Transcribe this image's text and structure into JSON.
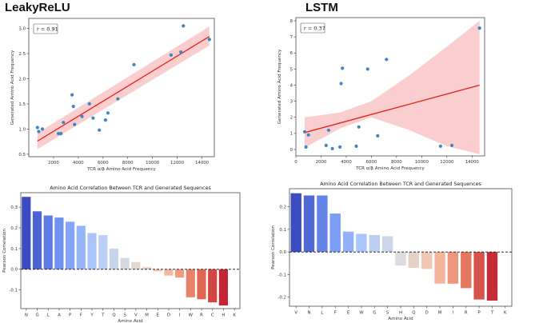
{
  "chart_data": [
    {
      "type": "scatter",
      "panel_title": "LeakyReLU",
      "annotation": "r = 0.91",
      "xlabel": "TCR α/β Amino Acid Frequency",
      "ylabel": "Generated Amino Acid Frequency",
      "xlim": [
        0,
        15000
      ],
      "ylim": [
        0.45,
        3.2
      ],
      "xticks": [
        2000,
        4000,
        6000,
        8000,
        10000,
        12000,
        14000
      ],
      "yticks": [
        0.5,
        1.0,
        1.5,
        2.0,
        2.5,
        3.0
      ],
      "points": [
        {
          "x": 700,
          "y": 1.03
        },
        {
          "x": 800,
          "y": 0.95
        },
        {
          "x": 1100,
          "y": 1.0
        },
        {
          "x": 2400,
          "y": 0.91
        },
        {
          "x": 2600,
          "y": 0.91
        },
        {
          "x": 2800,
          "y": 1.13
        },
        {
          "x": 3500,
          "y": 1.68
        },
        {
          "x": 3600,
          "y": 1.45
        },
        {
          "x": 3700,
          "y": 1.09
        },
        {
          "x": 4300,
          "y": 1.25
        },
        {
          "x": 4900,
          "y": 1.5
        },
        {
          "x": 5200,
          "y": 1.22
        },
        {
          "x": 5700,
          "y": 0.98
        },
        {
          "x": 6200,
          "y": 1.18
        },
        {
          "x": 6400,
          "y": 1.32
        },
        {
          "x": 7200,
          "y": 1.6
        },
        {
          "x": 8500,
          "y": 2.28
        },
        {
          "x": 11500,
          "y": 2.47
        },
        {
          "x": 12300,
          "y": 2.53
        },
        {
          "x": 12500,
          "y": 3.05
        },
        {
          "x": 14600,
          "y": 2.78
        }
      ],
      "regression": {
        "x": [
          700,
          14600
        ],
        "y": [
          0.76,
          2.84
        ]
      },
      "ci_band": {
        "x": [
          700,
          14600
        ],
        "lower": [
          0.6,
          2.66
        ],
        "upper": [
          0.92,
          3.04
        ]
      }
    },
    {
      "type": "scatter",
      "panel_title": "LSTM",
      "annotation": "r = 0.37",
      "xlabel": "TCR α/β Amino Acid Frequency",
      "ylabel": "Generated Amino Acid Frequency",
      "xlim": [
        0,
        15000
      ],
      "ylim": [
        -0.4,
        8.2
      ],
      "xticks": [
        0,
        2000,
        4000,
        6000,
        8000,
        10000,
        12000,
        14000
      ],
      "yticks": [
        0,
        1,
        2,
        3,
        4,
        5,
        6,
        7,
        8
      ],
      "points": [
        {
          "x": 700,
          "y": 1.1
        },
        {
          "x": 800,
          "y": 0.15
        },
        {
          "x": 1000,
          "y": 0.9
        },
        {
          "x": 2400,
          "y": 0.25
        },
        {
          "x": 2600,
          "y": 1.2
        },
        {
          "x": 2900,
          "y": 0.05
        },
        {
          "x": 3500,
          "y": 0.15
        },
        {
          "x": 3600,
          "y": 4.1
        },
        {
          "x": 3700,
          "y": 5.05
        },
        {
          "x": 4800,
          "y": 0.2
        },
        {
          "x": 5000,
          "y": 1.4
        },
        {
          "x": 5700,
          "y": 5.0
        },
        {
          "x": 6500,
          "y": 0.85
        },
        {
          "x": 7200,
          "y": 5.6
        },
        {
          "x": 11500,
          "y": 0.2
        },
        {
          "x": 12400,
          "y": 0.25
        },
        {
          "x": 14600,
          "y": 7.55
        }
      ],
      "regression": {
        "x": [
          700,
          14600
        ],
        "y": [
          1.05,
          4.0
        ]
      },
      "ci_band": {
        "x": [
          700,
          3500,
          6000,
          9000,
          12000,
          14600
        ],
        "lower": [
          0.1,
          1.3,
          2.0,
          1.2,
          0.2,
          -0.3
        ],
        "upper": [
          2.0,
          2.3,
          3.0,
          4.6,
          6.4,
          8.0
        ]
      }
    },
    {
      "type": "bar",
      "title": "Amino Acid Correlation Between TCR and Generated Sequences",
      "xlabel": "Amino Acid",
      "ylabel": "Pearson Correlation",
      "ylim": [
        -0.19,
        0.37
      ],
      "yticks": [
        -0.1,
        0.0,
        0.1,
        0.2,
        0.3
      ],
      "categories": [
        "N",
        "G",
        "L",
        "A",
        "P",
        "F",
        "Y",
        "T",
        "Q",
        "S",
        "V",
        "M",
        "E",
        "D",
        "I",
        "W",
        "R",
        "C",
        "H",
        "K"
      ],
      "values": [
        0.35,
        0.28,
        0.26,
        0.25,
        0.23,
        0.21,
        0.175,
        0.165,
        0.1,
        0.055,
        0.035,
        0.01,
        -0.01,
        -0.03,
        -0.04,
        -0.135,
        -0.145,
        -0.16,
        -0.175,
        0.0
      ]
    },
    {
      "type": "bar",
      "title": "Amino Acid Correlation Between TCR and Generated Sequences",
      "xlabel": "Amino Acid",
      "ylabel": "Pearson Correlation",
      "ylim": [
        -0.24,
        0.28
      ],
      "yticks": [
        -0.2,
        -0.1,
        0.0,
        0.1,
        0.2
      ],
      "categories": [
        "V",
        "N",
        "L",
        "F",
        "E",
        "W",
        "G",
        "S",
        "H",
        "Q",
        "D",
        "M",
        "I",
        "R",
        "P",
        "T",
        "K"
      ],
      "values": [
        0.26,
        0.25,
        0.25,
        0.17,
        0.09,
        0.08,
        0.075,
        0.07,
        -0.06,
        -0.07,
        -0.075,
        -0.14,
        -0.14,
        -0.16,
        -0.21,
        -0.215,
        0.0
      ]
    }
  ]
}
